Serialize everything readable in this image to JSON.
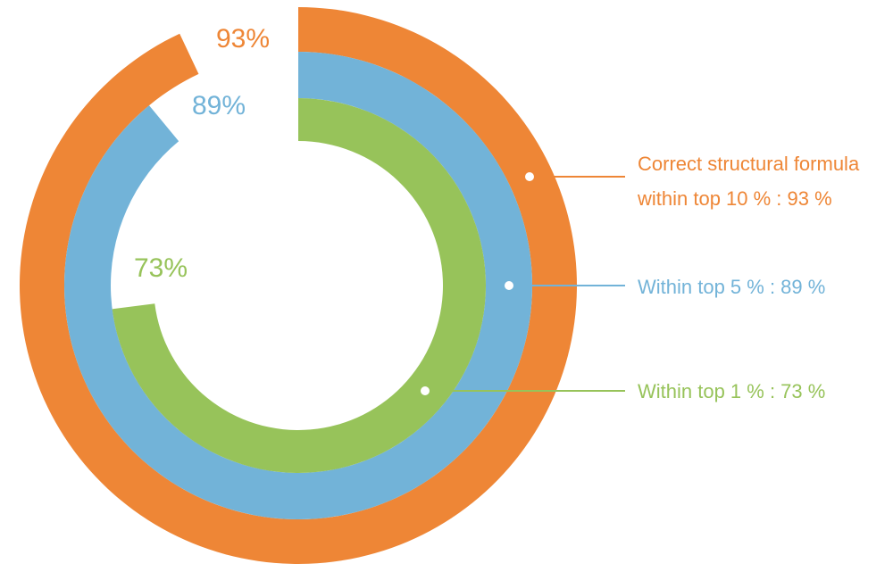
{
  "chart_data": {
    "type": "radial_bar",
    "series": [
      {
        "name": "Correct structural formula within top 10 % : 93 %",
        "color": "#ee8636",
        "values": [
          93
        ],
        "value_labels": [
          "93%"
        ]
      },
      {
        "name": "Within top 5 % : 89 %",
        "color": "#72b3d8",
        "values": [
          89
        ],
        "value_labels": [
          "89%"
        ]
      },
      {
        "name": "Within top 1 % : 73 %",
        "color": "#97c35a",
        "values": [
          73
        ],
        "value_labels": [
          "73%"
        ]
      }
    ]
  }
}
